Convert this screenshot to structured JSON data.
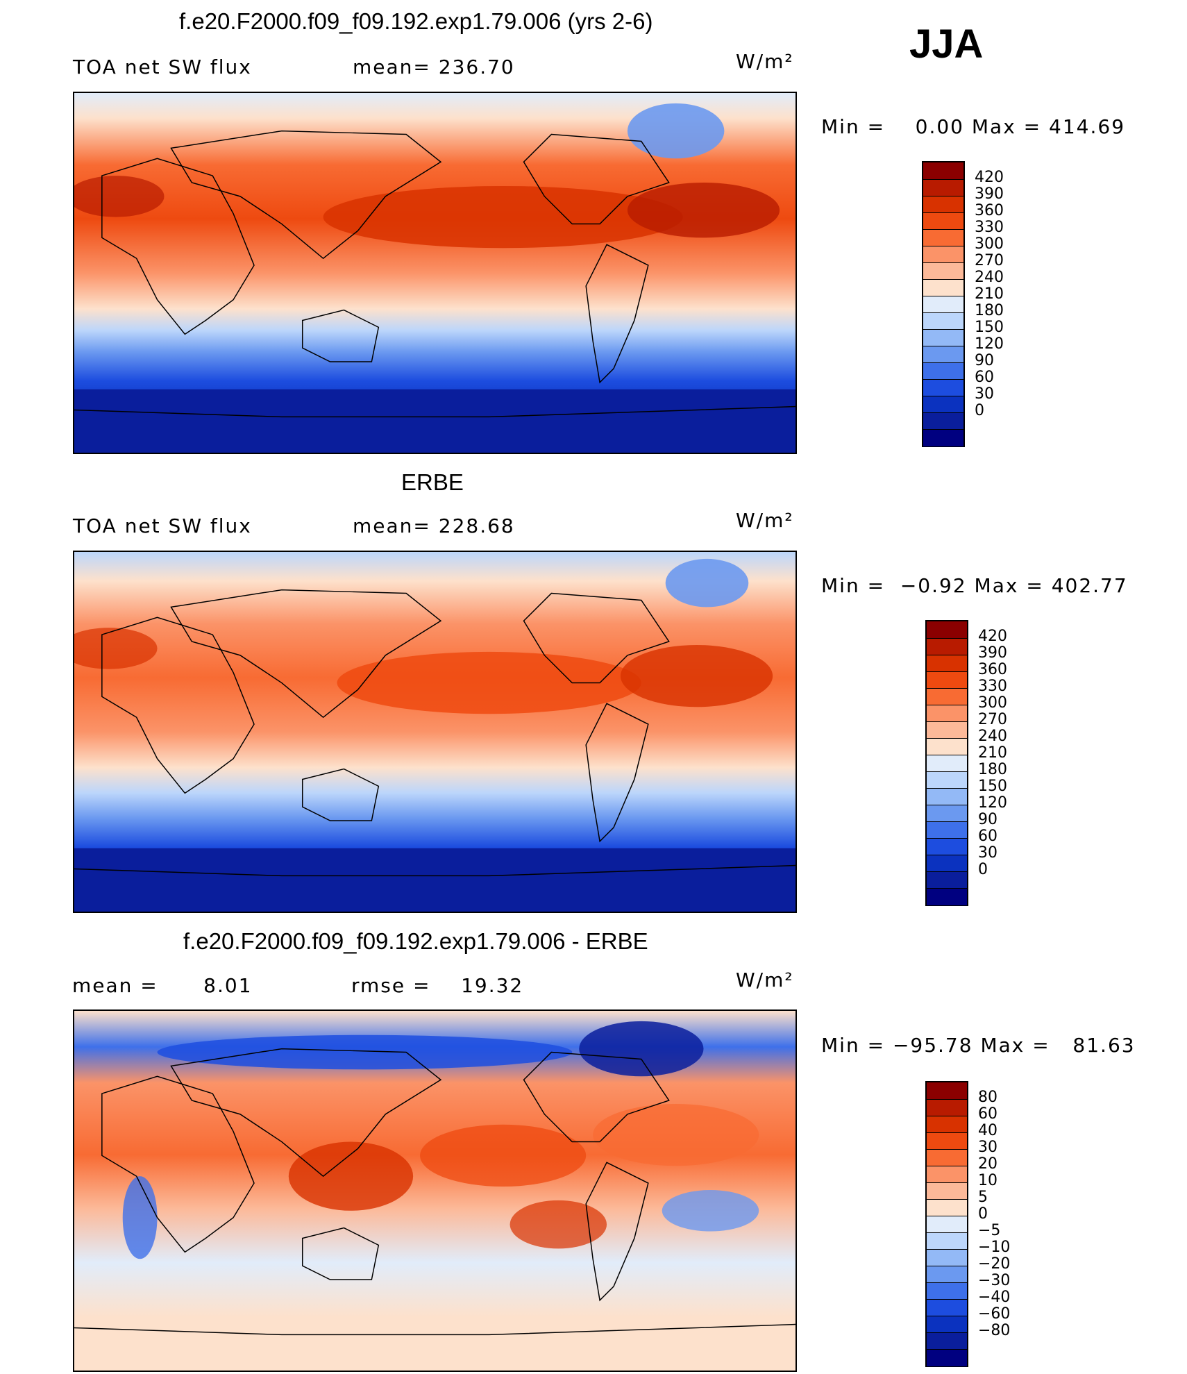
{
  "season": "JJA",
  "panels": [
    {
      "id": "model",
      "title": "f.e20.F2000.f09_f09.192.exp1.79.006 (yrs 2-6)",
      "left_label": "TOA net SW flux",
      "mid_label": "mean= 236.70",
      "unit_label": "W/m²",
      "minmax": "Min =    0.00 Max = 414.69",
      "colorbar": {
        "colors": [
          "#8b0000",
          "#b81b00",
          "#d83200",
          "#ee4a10",
          "#f86b33",
          "#fb9368",
          "#fcb999",
          "#fde1cc",
          "#e1ecfa",
          "#bcd6fb",
          "#93b9f6",
          "#6b99f0",
          "#3e70ea",
          "#1d4ddf",
          "#0b32bf",
          "#0a1e9c",
          "#000080"
        ],
        "labels": [
          "420",
          "390",
          "360",
          "330",
          "300",
          "270",
          "240",
          "210",
          "180",
          "150",
          "120",
          "90",
          "60",
          "30",
          "0"
        ]
      }
    },
    {
      "id": "obs",
      "title": "ERBE",
      "left_label": "TOA net SW flux",
      "mid_label": "mean= 228.68",
      "unit_label": "W/m²",
      "minmax": "Min =  −0.92 Max = 402.77",
      "colorbar": {
        "colors": [
          "#8b0000",
          "#b81b00",
          "#d83200",
          "#ee4a10",
          "#f86b33",
          "#fb9368",
          "#fcb999",
          "#fde1cc",
          "#e1ecfa",
          "#bcd6fb",
          "#93b9f6",
          "#6b99f0",
          "#3e70ea",
          "#1d4ddf",
          "#0b32bf",
          "#0a1e9c",
          "#000080"
        ],
        "labels": [
          "420",
          "390",
          "360",
          "330",
          "300",
          "270",
          "240",
          "210",
          "180",
          "150",
          "120",
          "90",
          "60",
          "30",
          "0"
        ]
      }
    },
    {
      "id": "diff",
      "title": "f.e20.F2000.f09_f09.192.exp1.79.006 - ERBE",
      "left_label": "mean =      8.01",
      "mid_label": "rmse =    19.32",
      "unit_label": "W/m²",
      "minmax": "Min = −95.78 Max =   81.63",
      "colorbar": {
        "colors": [
          "#8b0000",
          "#b81b00",
          "#d83200",
          "#ee4a10",
          "#f86b33",
          "#fb9368",
          "#fcb999",
          "#fde1cc",
          "#e1ecfa",
          "#bcd6fb",
          "#93b9f6",
          "#6b99f0",
          "#3e70ea",
          "#1d4ddf",
          "#0b32bf",
          "#0a1e9c",
          "#000080"
        ],
        "labels": [
          "80",
          "60",
          "40",
          "30",
          "20",
          "10",
          "5",
          "0",
          "−5",
          "−10",
          "−20",
          "−30",
          "−40",
          "−60",
          "−80"
        ]
      }
    }
  ]
}
